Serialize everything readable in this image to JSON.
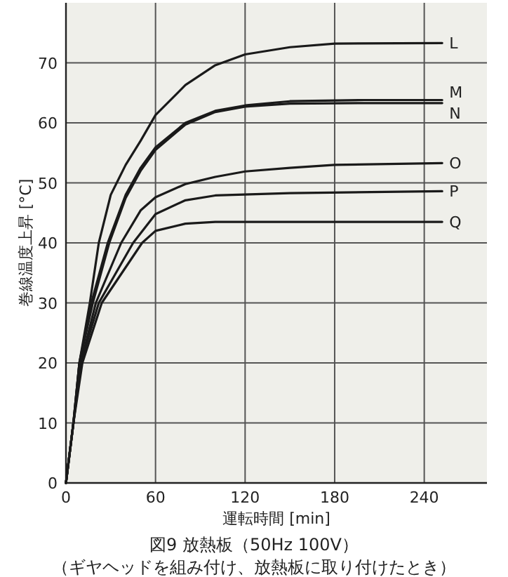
{
  "chart_data": {
    "type": "line",
    "title": "図9 放熱板（50Hz 100V）",
    "subtitle": "（ギヤヘッドを組み付け、放熱板に取り付けたとき）",
    "xlabel": "運転時間 [min]",
    "ylabel": "巻線温度上昇 [°C]",
    "xlim": [
      0,
      282
    ],
    "ylim": [
      0,
      80
    ],
    "xticks": [
      0,
      60,
      120,
      180,
      240
    ],
    "yticks": [
      0,
      10,
      20,
      30,
      40,
      50,
      60,
      70
    ],
    "grid": true,
    "legend": false,
    "series": [
      {
        "name": "L",
        "color": "#1a1a1a",
        "x": [
          0,
          5,
          9,
          16,
          22,
          30,
          40,
          50,
          60,
          80,
          100,
          120,
          150,
          180,
          252
        ],
        "values": [
          0,
          10,
          20,
          30,
          40,
          48,
          53,
          57,
          61.3,
          66.3,
          69.6,
          71.4,
          72.6,
          73.2,
          73.3
        ]
      },
      {
        "name": "M",
        "color": "#1a1a1a",
        "x": [
          0,
          5,
          9,
          17,
          28,
          40,
          50,
          60,
          80,
          100,
          120,
          150,
          200,
          252
        ],
        "values": [
          0,
          10,
          20,
          30,
          40,
          48,
          52.5,
          55.9,
          60,
          62,
          62.9,
          63.6,
          63.8,
          63.8
        ]
      },
      {
        "name": "N",
        "color": "#1a1a1a",
        "x": [
          0,
          5,
          9,
          18,
          29,
          40,
          50,
          60,
          80,
          100,
          120,
          150,
          200,
          252
        ],
        "values": [
          0,
          10,
          20,
          30,
          40,
          47.5,
          52,
          55.5,
          59.7,
          61.8,
          62.7,
          63.2,
          63.3,
          63.3
        ]
      },
      {
        "name": "O",
        "color": "#1a1a1a",
        "x": [
          0,
          5,
          10,
          20,
          37,
          50,
          60,
          80,
          100,
          120,
          150,
          180,
          252
        ],
        "values": [
          0,
          10,
          20,
          30,
          40,
          45.4,
          47.6,
          49.8,
          51,
          51.9,
          52.5,
          53,
          53.3
        ]
      },
      {
        "name": "P",
        "color": "#1a1a1a",
        "x": [
          0,
          5,
          10,
          22,
          45,
          60,
          80,
          100,
          150,
          252
        ],
        "values": [
          0,
          10,
          20,
          30,
          40,
          44.8,
          47.1,
          47.9,
          48.3,
          48.6
        ]
      },
      {
        "name": "Q",
        "color": "#1a1a1a",
        "x": [
          0,
          5,
          11,
          24,
          51,
          60,
          80,
          100,
          252
        ],
        "values": [
          0,
          10,
          20,
          30,
          40,
          42,
          43.2,
          43.5,
          43.5
        ]
      }
    ]
  }
}
